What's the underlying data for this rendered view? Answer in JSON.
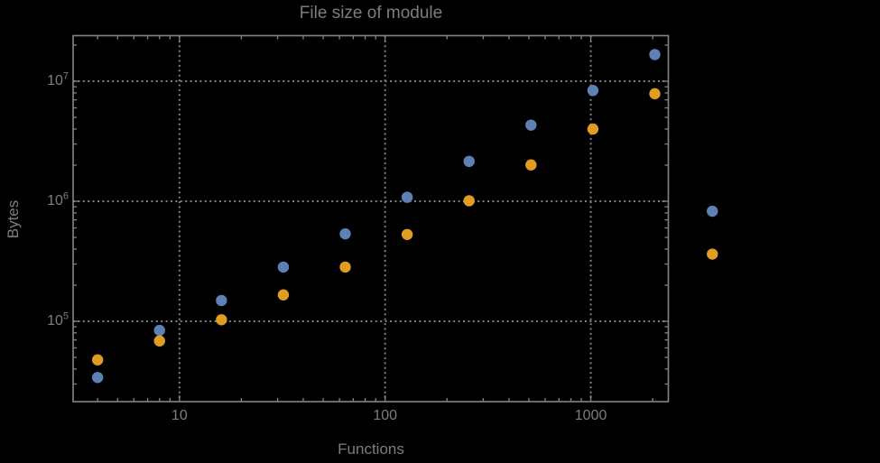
{
  "page": {
    "background_color": "#000000",
    "text_color": "#7d7d7d",
    "frame_color": "#848484",
    "gridline_color": "#808080"
  },
  "chart_data": {
    "type": "scatter",
    "title": "File size of module",
    "xlabel": "Functions",
    "ylabel": "Bytes",
    "xscale": "log",
    "yscale": "log",
    "xlim": [
      3.04,
      2383
    ],
    "ylim": [
      21400,
      24000000
    ],
    "grid": "dotted, at major decades only, frame on all four sides with inward log ticks",
    "legend": "none",
    "plot_range_clipping": false,
    "x_ticks": [
      {
        "label": "10",
        "value": 10
      },
      {
        "label": "100",
        "value": 100
      },
      {
        "label": "1000",
        "value": 1000
      }
    ],
    "y_ticks": [
      {
        "label_base": "10",
        "label_exponent": "5",
        "value": 100000
      },
      {
        "label_base": "10",
        "label_exponent": "6",
        "value": 1000000
      },
      {
        "label_base": "10",
        "label_exponent": "7",
        "value": 10000000
      }
    ],
    "x": [
      4,
      8,
      16,
      32,
      64,
      128,
      256,
      512,
      1024,
      2048,
      3900
    ],
    "series": [
      {
        "name": "series-1-blue",
        "color": "#5E81B5",
        "values": [
          34000,
          84000,
          149000,
          283000,
          535000,
          1080000,
          2150000,
          4310000,
          8380000,
          16700000,
          826000
        ]
      },
      {
        "name": "series-2-orange",
        "color": "#E19C24",
        "values": [
          47700,
          68600,
          103000,
          166000,
          283000,
          529000,
          1010000,
          2010000,
          4000000,
          7870000,
          363000
        ]
      }
    ]
  }
}
